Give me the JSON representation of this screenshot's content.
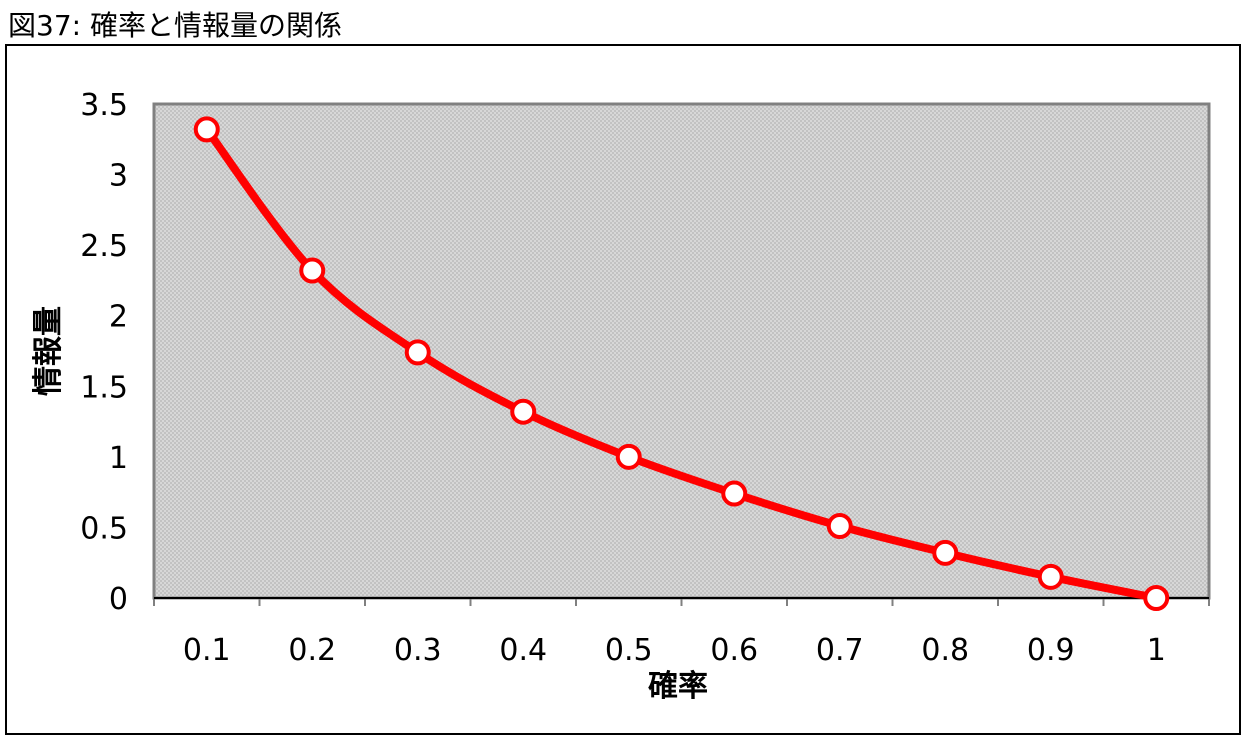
{
  "figure": {
    "caption": "図37: 確率と情報量の関係"
  },
  "chart_data": {
    "type": "line",
    "title": "",
    "xlabel": "確率",
    "ylabel": "情報量",
    "categories": [
      "0.1",
      "0.2",
      "0.3",
      "0.4",
      "0.5",
      "0.6",
      "0.7",
      "0.8",
      "0.9",
      "1"
    ],
    "series": [
      {
        "values": [
          3.32,
          2.32,
          1.74,
          1.32,
          1.0,
          0.74,
          0.51,
          0.32,
          0.15,
          0.0
        ],
        "color": "#ff0000",
        "marker": "circle",
        "marker_fill": "#ffffff",
        "smoothed": true
      }
    ],
    "ylim": [
      0,
      3.5
    ],
    "yticks": [
      "0",
      "0.5",
      "1",
      "1.5",
      "2",
      "2.5",
      "3",
      "3.5"
    ],
    "grid": false,
    "legend": "none",
    "plot_background": "#c0c0c0",
    "plot_pattern": "fine-dots"
  }
}
